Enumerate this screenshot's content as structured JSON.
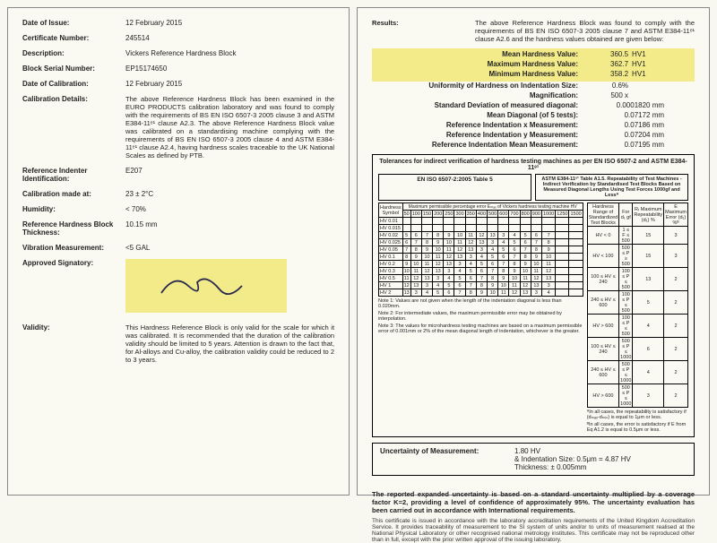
{
  "left": {
    "date_issue_label": "Date of Issue:",
    "date_issue": "12 February 2015",
    "cert_no_label": "Certificate Number:",
    "cert_no": "245514",
    "desc_label": "Description:",
    "desc": "Vickers Reference Hardness Block",
    "serial_label": "Block Serial Number:",
    "serial": "EP15174650",
    "cal_date_label": "Date of Calibration:",
    "cal_date": "12 February 2015",
    "cal_details_label": "Calibration Details:",
    "cal_details": "The above Reference Hardness Block has been examined in the EURO PRODUCTS calibration laboratory and was found to comply with the requirements of BS EN ISO 6507-3 2005 clause 3 and ASTM E384-11ᵉ¹ clause A2.3. The above Reference Hardness Block value was calibrated on a standardising machine complying with the requirements of BS EN ISO 6507-3 2005 clause 4 and ASTM E384-11ᵉ¹ clause A2.4, having hardness scales traceable to the UK National Scales as defined by PTB.",
    "indenter_label": "Reference Indenter Identification:",
    "indenter": "E207",
    "calmade_label": "Calibration made at:",
    "calmade": "23 ± 2°C",
    "humidity_label": "Humidity:",
    "humidity": "< 70%",
    "thickness_label": "Reference Hardness Block Thickness:",
    "thickness": "10.15 mm",
    "vib_label": "Vibration Measurement:",
    "vib": "<5 GAL",
    "sig_label": "Approved Signatory:",
    "validity_label": "Validity:",
    "validity": "This Hardness Reference Block is only valid for the scale for which it was calibrated. It is recommended that the duration of the calibration validity should be limited to 5 years. Attention is drawn to the fact that, for Al-alloys and Cu-alloy, the calibration validity could be reduced to 2 to 3 years."
  },
  "right": {
    "results_label": "Results:",
    "results_text": "The above Reference Hardness Block was found to comply with the requirements of BS EN ISO 6507-3 2005 clause 7 and ASTM E384-11ᵉ¹ clause A2.6 and the hardness values obtained are given below:",
    "mean_label": "Mean Hardness Value:",
    "mean_val": "360.5",
    "mean_unit": "HV1",
    "max_label": "Maximum Hardness Value:",
    "max_val": "362.7",
    "max_unit": "HV1",
    "min_label": "Minimum Hardness Value:",
    "min_val": "358.2",
    "min_unit": "HV1",
    "unif_label": "Uniformity of Hardness on Indentation Size:",
    "unif_val": "0.6%",
    "mag_label": "Magnification:",
    "mag_val": "500 x",
    "stddev_label": "Standard Deviation of measured diagonal:",
    "stddev_val": "0.0001820 mm",
    "meandiag_label": "Mean Diagonal (of 5 tests):",
    "meandiag_val": "0.07172 mm",
    "refx_label": "Reference Indentation x Measurement:",
    "refx_val": "0.07186 mm",
    "refy_label": "Reference Indentation y Measurement:",
    "refy_val": "0.07204 mm",
    "refmean_label": "Reference Indentation Mean Measurement:",
    "refmean_val": "0.07195 mm",
    "tol_title": "Tolerances for indirect verification of hardness testing machines as per EN ISO 6507-2 and ASTM E384-11ᵉ¹",
    "tol_h1": "EN ISO 6507-2:2005 Table 5",
    "tol_h2": "ASTM E384-11ᵉ¹ Table A1.5. Repeatability of Test Machines - Indirect Verification by Standardised Test Blocks Based on Measured Diagonal Lengths Using Test Forces 1000gf and Lessᴬ",
    "left_col_label": "Hardness Symbol",
    "left_col2_label": "Maximum permissible percentage error Eₘₐₓ of Vickers hardness testing machine HV",
    "syms": [
      "HV 0.01",
      "HV 0.015",
      "HV 0.02",
      "HV 0.025",
      "HV 0.05",
      "HV 0.1",
      "HV 0.2",
      "HV 0.3",
      "HV 0.5",
      "HV 1",
      "HV 2"
    ],
    "hv_hdr": [
      "50",
      "100",
      "150",
      "200",
      "250",
      "300",
      "350",
      "400",
      "500",
      "600",
      "700",
      "800",
      "900",
      "1000",
      "1250",
      "1500"
    ],
    "right_hdr1": "Hardness Range of Standardized Test Blocks",
    "right_hdr2": "For d₁ gf",
    "right_hdr3": "Rᵣ Maximum Repeatability (d₁) %",
    "right_hdr4": "E Maximum Error (d₁) %ᴮ",
    "right_rows": [
      [
        "HV < 0",
        "1 ≤ F ≤ 500",
        "15",
        "3"
      ],
      [
        "HV < 100",
        "500 ≤ P ≥ 500",
        "15",
        "3"
      ],
      [
        "100 ≤ HV ≤ 240",
        "100 ≤ P ≤ 500",
        "13",
        "2"
      ],
      [
        "240 ≤ HV ≤ 600",
        "100 ≤ P ≤ 500",
        "5",
        "2"
      ],
      [
        "HV > 600",
        "100 ≤ P ≤ 500",
        "4",
        "2"
      ],
      [
        "100 ≤ HV ≤ 240",
        "500 ≤ P ≤ 1000",
        "6",
        "2"
      ],
      [
        "240 ≤ HV ≤ 600",
        "500 ≤ P ≤ 1000",
        "4",
        "2"
      ],
      [
        "HV > 600",
        "500 ≤ P ≤ 1000",
        "3",
        "2"
      ]
    ],
    "note1": "Note 1: Values are not given when the length of the indentation diagonal is less than 0.020mm.",
    "note2": "Note 2: For intermediate values, the maximum permissible error may be obtained by interpolation.",
    "note3": "Note 3: The values for microhardness testing machines are based on a maximum permissible error of 0.001mm or 2% of the mean diagonal length of indentation, whichever is the greater.",
    "noteA": "ᴬIn all cases, the repeatability is satisfactory if (dₘₐₓ-dₘᵢₙ) is equal to 1μm or less.",
    "noteB": "ᴮIn all cases, the error is satisfactory if E from Eq A1.2 is equal to 0.5μm or less.",
    "uncert_label": "Uncertainty of Measurement:",
    "uncert_val": "1.80 HV",
    "uncert_ind": "& Indentation Size: 0.5μm = 4.87 HV",
    "uncert_thick": "Thickness: ± 0.005mm",
    "foot_bold": "The reported expanded uncertainty is based on a standard uncertainty multiplied by a coverage factor K=2, providing a level of confidence of approximately 95%. The uncertainty evaluation has been carried out in accordance with International requirements.",
    "foot_small": "This certificate is issued in accordance with the laboratory accreditation requirements of the United Kingdom Accreditation Service. It provides traceability of measurement to the SI system of units and/or to units of measurement realised at the National Physical Laboratory or other recognised national metrology institutes. This certificate may not be reproduced other than in full, except with the prior written approval of the issuing laboratory."
  }
}
